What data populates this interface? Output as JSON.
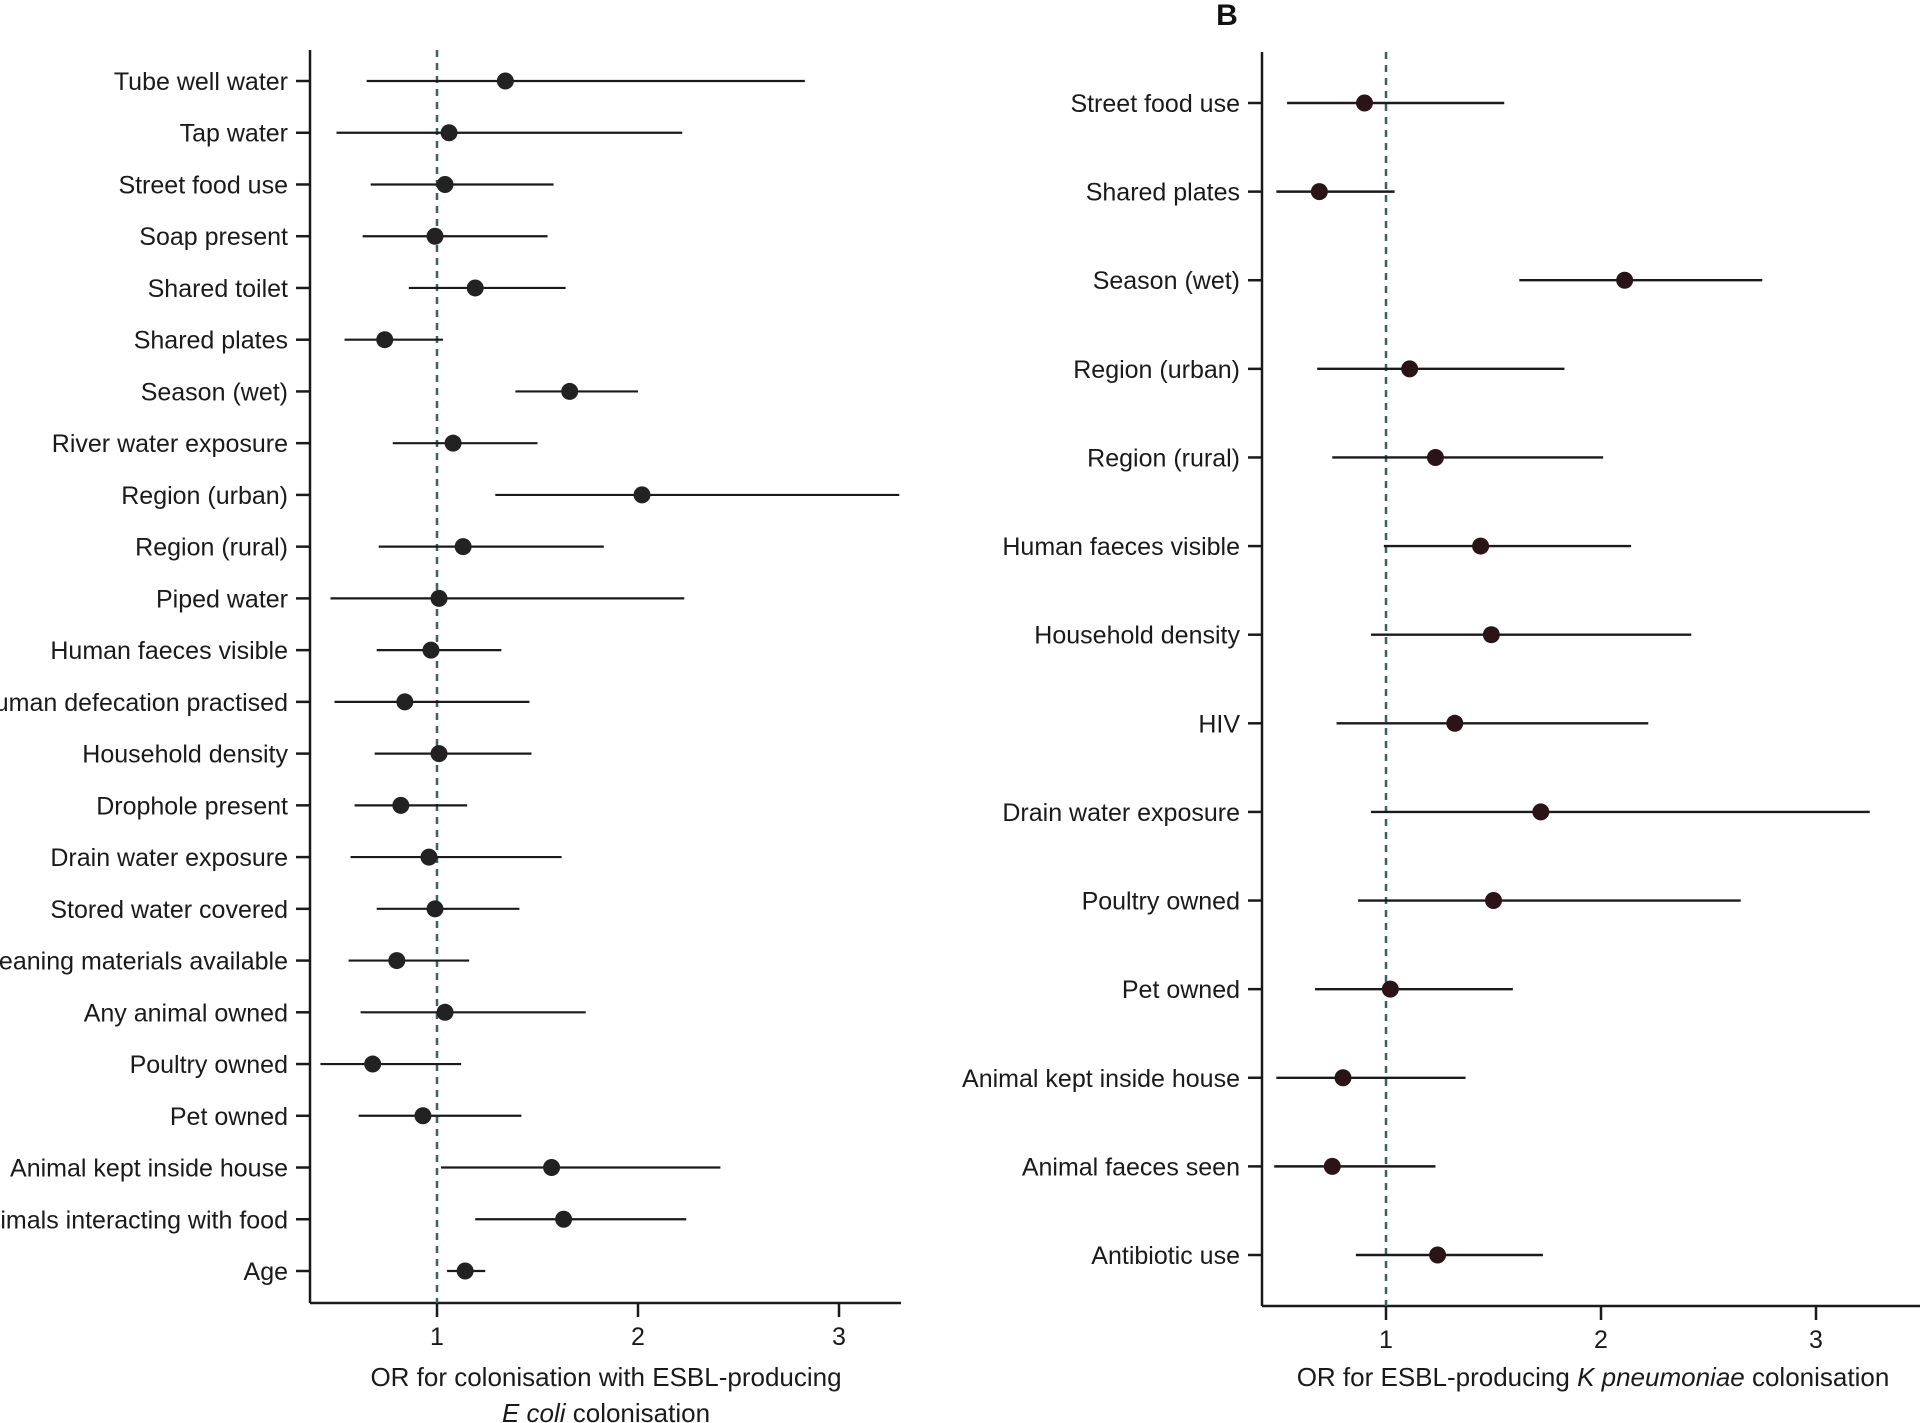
{
  "colors": {
    "axis": "#1a1a1a",
    "ci": "#1a1a1a",
    "dot_a": "#222222",
    "dot_b": "#2a1418",
    "refline": "#3d5f66"
  },
  "chart_data": [
    {
      "type": "forest",
      "panel_label": "",
      "xlabel_line1": "OR for colonisation with ESBL-producing",
      "xlabel_line2_italic": "E coli",
      "xlabel_line2_rest": " colonisation",
      "xlim": [
        0.37,
        3.3
      ],
      "xticks": [
        1,
        2,
        3
      ],
      "xtick_labels": [
        "1",
        "2",
        "3"
      ],
      "reference_line": 1,
      "rows": [
        {
          "label": "Tube well water",
          "or": 1.34,
          "low": 0.65,
          "high": 2.83
        },
        {
          "label": "Tap water",
          "or": 1.06,
          "low": 0.5,
          "high": 2.22
        },
        {
          "label": "Street food use",
          "or": 1.04,
          "low": 0.67,
          "high": 1.58
        },
        {
          "label": "Soap present",
          "or": 0.99,
          "low": 0.63,
          "high": 1.55
        },
        {
          "label": "Shared toilet",
          "or": 1.19,
          "low": 0.86,
          "high": 1.64
        },
        {
          "label": "Shared plates",
          "or": 0.74,
          "low": 0.54,
          "high": 1.03
        },
        {
          "label": "Season (wet)",
          "or": 1.66,
          "low": 1.39,
          "high": 2.0
        },
        {
          "label": "River water exposure",
          "or": 1.08,
          "low": 0.78,
          "high": 1.5
        },
        {
          "label": "Region (urban)",
          "or": 2.02,
          "low": 1.29,
          "high": 3.3
        },
        {
          "label": "Region (rural)",
          "or": 1.13,
          "low": 0.71,
          "high": 1.83
        },
        {
          "label": "Piped water",
          "or": 1.01,
          "low": 0.47,
          "high": 2.23
        },
        {
          "label": "Human faeces visible",
          "or": 0.97,
          "low": 0.7,
          "high": 1.32
        },
        {
          "label": "Open human defecation practised",
          "or": 0.84,
          "low": 0.49,
          "high": 1.46
        },
        {
          "label": "Household density",
          "or": 1.01,
          "low": 0.69,
          "high": 1.47
        },
        {
          "label": "Drophole present",
          "or": 0.82,
          "low": 0.59,
          "high": 1.15
        },
        {
          "label": "Drain water exposure",
          "or": 0.96,
          "low": 0.57,
          "high": 1.62
        },
        {
          "label": "Stored water covered",
          "or": 0.99,
          "low": 0.7,
          "high": 1.41
        },
        {
          "label": "Cleaning materials available",
          "or": 0.8,
          "low": 0.56,
          "high": 1.16
        },
        {
          "label": "Any animal owned",
          "or": 1.04,
          "low": 0.62,
          "high": 1.74
        },
        {
          "label": "Poultry owned",
          "or": 0.68,
          "low": 0.42,
          "high": 1.12
        },
        {
          "label": "Pet owned",
          "or": 0.93,
          "low": 0.61,
          "high": 1.42
        },
        {
          "label": "Animal kept inside house",
          "or": 1.57,
          "low": 1.02,
          "high": 2.41
        },
        {
          "label": "Animals interacting with food",
          "or": 1.63,
          "low": 1.19,
          "high": 2.24
        },
        {
          "label": "Age",
          "or": 1.14,
          "low": 1.05,
          "high": 1.24
        }
      ]
    },
    {
      "type": "forest",
      "panel_label": "B",
      "xlabel_pre": "OR for ESBL-producing ",
      "xlabel_italic": "K pneumoniae",
      "xlabel_post": " colonisation",
      "xlim": [
        0.45,
        3.45
      ],
      "xticks": [
        1,
        2,
        3
      ],
      "xtick_labels": [
        "1",
        "2",
        "3"
      ],
      "reference_line": 1,
      "rows": [
        {
          "label": "Street food use",
          "or": 0.9,
          "low": 0.54,
          "high": 1.55
        },
        {
          "label": "Shared plates",
          "or": 0.69,
          "low": 0.49,
          "high": 1.04
        },
        {
          "label": "Season (wet)",
          "or": 2.11,
          "low": 1.62,
          "high": 2.75
        },
        {
          "label": "Region (urban)",
          "or": 1.11,
          "low": 0.68,
          "high": 1.83
        },
        {
          "label": "Region (rural)",
          "or": 1.23,
          "low": 0.75,
          "high": 2.01
        },
        {
          "label": "Human faeces visible",
          "or": 1.44,
          "low": 0.99,
          "high": 2.14
        },
        {
          "label": "Household density",
          "or": 1.49,
          "low": 0.93,
          "high": 2.42
        },
        {
          "label": "HIV",
          "or": 1.32,
          "low": 0.77,
          "high": 2.22
        },
        {
          "label": "Drain water exposure",
          "or": 1.72,
          "low": 0.93,
          "high": 3.25
        },
        {
          "label": "Poultry owned",
          "or": 1.5,
          "low": 0.87,
          "high": 2.65
        },
        {
          "label": "Pet owned",
          "or": 1.02,
          "low": 0.67,
          "high": 1.59
        },
        {
          "label": "Animal kept inside house",
          "or": 0.8,
          "low": 0.49,
          "high": 1.37
        },
        {
          "label": "Animal faeces seen",
          "or": 0.75,
          "low": 0.48,
          "high": 1.23
        },
        {
          "label": "Antibiotic use",
          "or": 1.24,
          "low": 0.86,
          "high": 1.73
        }
      ]
    }
  ]
}
